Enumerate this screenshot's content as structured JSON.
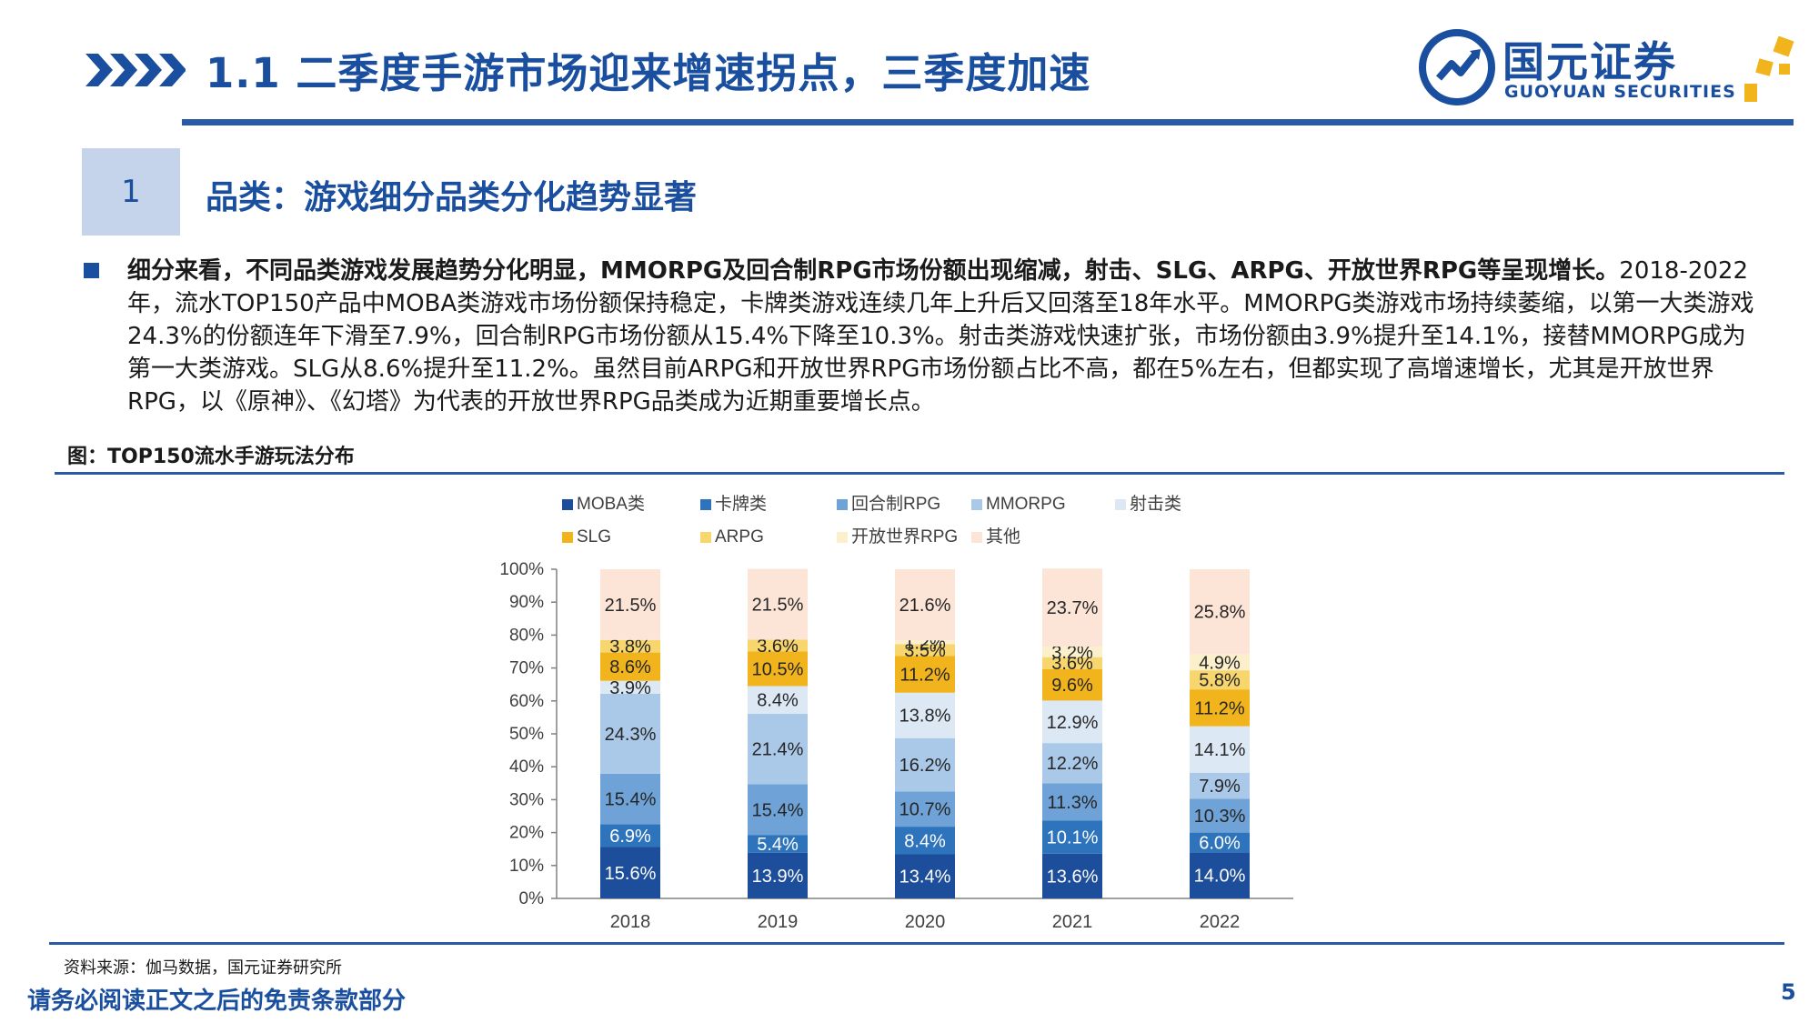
{
  "header": {
    "title": "1.1 二季度手游市场迎来增速拐点，三季度加速",
    "logo_cn": "国元证券",
    "logo_en": "GUOYUAN SECURITIES"
  },
  "section": {
    "number": "1",
    "title": "品类：游戏细分品类分化趋势显著"
  },
  "paragraph": {
    "bold_lead": "细分来看，不同品类游戏发展趋势分化明显，MMORPG及回合制RPG市场份额出现缩减，射击、SLG、ARPG、开放世界RPG等呈现增长。",
    "body": "2018-2022年，流水TOP150产品中MOBA类游戏市场份额保持稳定，卡牌类游戏连续几年上升后又回落至18年水平。MMORPG类游戏市场持续萎缩，以第一大类游戏24.3%的份额连年下滑至7.9%，回合制RPG市场份额从15.4%下降至10.3%。射击类游戏快速扩张，市场份额由3.9%提升至14.1%，接替MMORPG成为第一大类游戏。SLG从8.6%提升至11.2%。虽然目前ARPG和开放世界RPG市场份额占比不高，都在5%左右，但都实现了高增速增长，尤其是开放世界RPG，以《原神》、《幻塔》为代表的开放世界RPG品类成为近期重要增长点。"
  },
  "figure_caption": "图：TOP150流水手游玩法分布",
  "source": "资料来源：伽马数据，国元证券研究所",
  "disclaimer": "请务必阅读正文之后的免责条款部分",
  "page_number": "5",
  "colors": {
    "brand": "#1a4e9e",
    "MOBA类": "#1d4e9b",
    "卡牌类": "#2e74bd",
    "回合制RPG": "#6fa2d6",
    "MMORPG": "#aac8e8",
    "射击类": "#dde8f5",
    "SLG": "#f2b41c",
    "ARPG": "#f8d66e",
    "开放世界RPG": "#fcefcb",
    "其他": "#fce4d6"
  },
  "chart_data": {
    "type": "bar",
    "stacked": true,
    "percent": true,
    "categories": [
      "2018",
      "2019",
      "2020",
      "2021",
      "2022"
    ],
    "series": [
      {
        "name": "MOBA类",
        "values": [
          15.6,
          13.9,
          13.4,
          13.6,
          14.0
        ]
      },
      {
        "name": "卡牌类",
        "values": [
          6.9,
          5.4,
          8.4,
          10.1,
          6.0
        ]
      },
      {
        "name": "回合制RPG",
        "values": [
          15.4,
          15.4,
          10.7,
          11.3,
          10.3
        ]
      },
      {
        "name": "MMORPG",
        "values": [
          24.3,
          21.4,
          16.2,
          12.2,
          7.9
        ]
      },
      {
        "name": "射击类",
        "values": [
          3.9,
          8.4,
          13.8,
          12.9,
          14.1
        ]
      },
      {
        "name": "SLG",
        "values": [
          8.6,
          10.5,
          11.2,
          9.6,
          11.2
        ]
      },
      {
        "name": "ARPG",
        "values": [
          3.8,
          3.6,
          3.5,
          3.6,
          5.8
        ]
      },
      {
        "name": "开放世界RPG",
        "values": [
          null,
          null,
          1.2,
          3.2,
          4.9
        ]
      },
      {
        "name": "其他",
        "values": [
          21.5,
          21.5,
          21.6,
          23.7,
          25.8
        ]
      }
    ],
    "ylim": [
      0,
      100
    ],
    "yticks": [
      "0%",
      "10%",
      "20%",
      "30%",
      "40%",
      "50%",
      "60%",
      "70%",
      "80%",
      "90%",
      "100%"
    ],
    "legend_position": "top",
    "grid": false
  }
}
